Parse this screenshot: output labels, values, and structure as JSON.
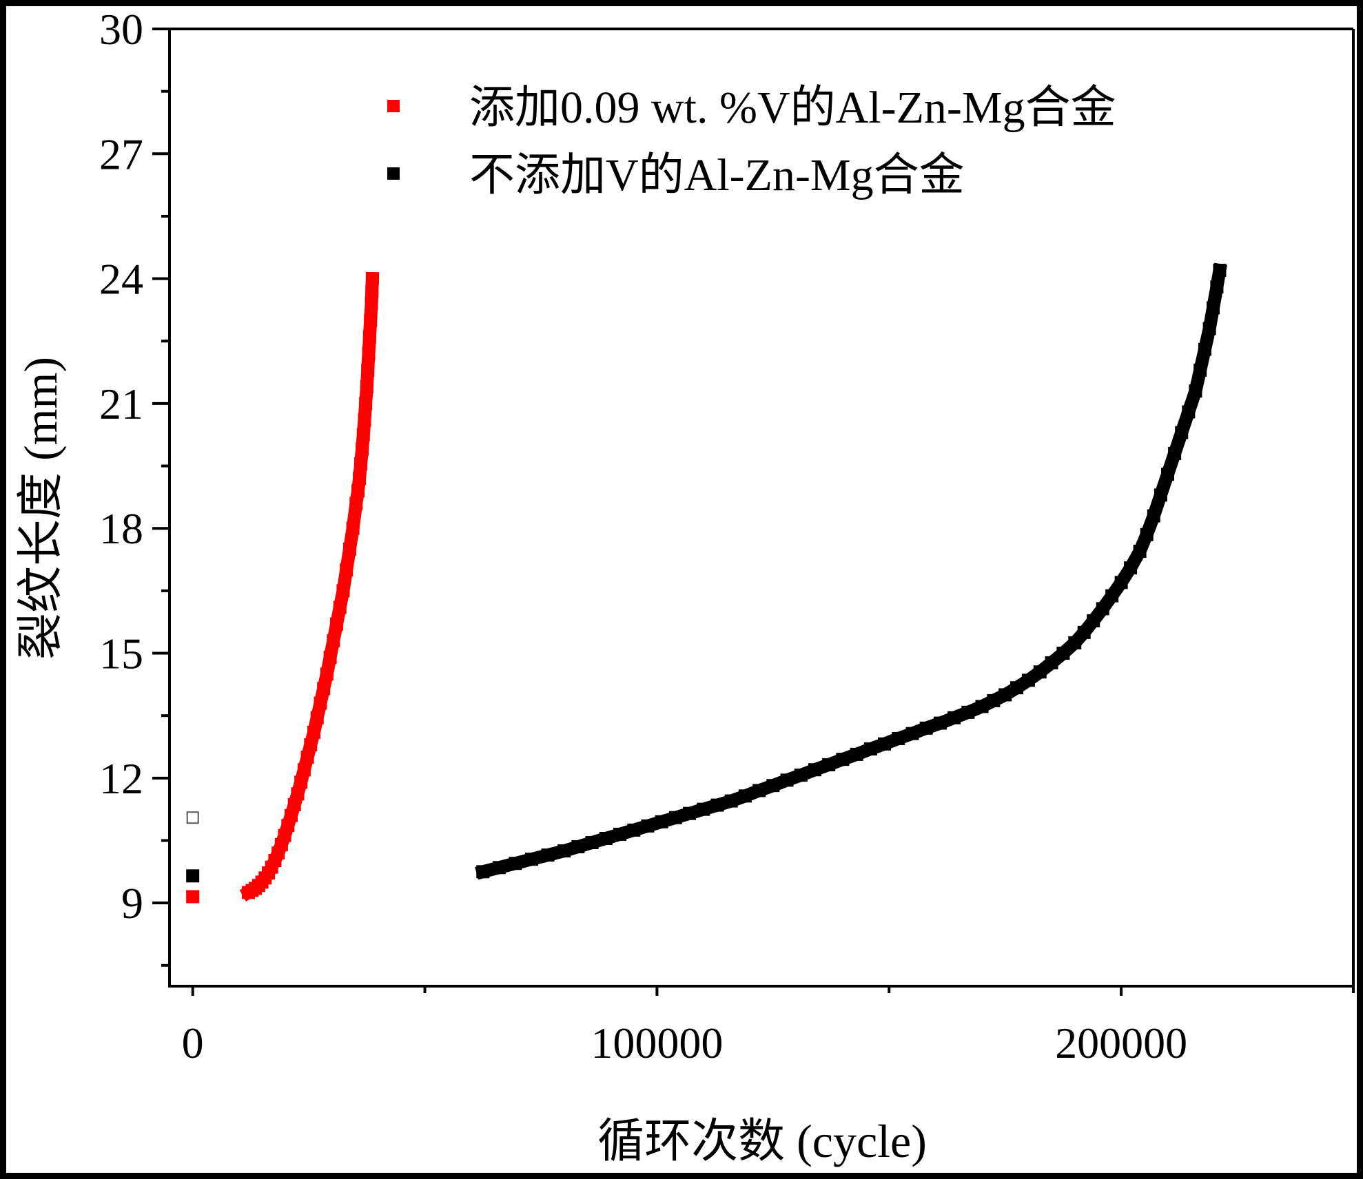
{
  "chart_data": {
    "type": "scatter",
    "title": "",
    "xlabel": "循环次数 (cycle)",
    "ylabel": "裂纹长度 (mm)",
    "xlim": [
      -5000,
      250000
    ],
    "ylim": [
      7,
      30
    ],
    "x_major_ticks": [
      0,
      100000,
      200000
    ],
    "x_tick_labels": [
      "0",
      "100000",
      "200000"
    ],
    "x_minor_ticks": [
      50000,
      150000,
      250000
    ],
    "y_major_ticks": [
      9,
      12,
      15,
      18,
      21,
      24,
      27,
      30
    ],
    "y_tick_labels": [
      "9",
      "12",
      "15",
      "18",
      "21",
      "24",
      "27",
      "30"
    ],
    "y_minor_ticks": [
      7.5,
      10.5,
      13.5,
      16.5,
      19.5,
      22.5,
      25.5,
      28.5
    ],
    "grid": false,
    "legend_position": "top-center",
    "series": [
      {
        "name": "添加0.09 wt. %V的Al-Zn-Mg合金",
        "color": "#ff0000",
        "marker": "filled-square",
        "points": [
          [
            0,
            9.15
          ],
          [
            12000,
            9.25
          ],
          [
            12800,
            9.3
          ],
          [
            13500,
            9.35
          ],
          [
            14200,
            9.42
          ],
          [
            14900,
            9.5
          ],
          [
            15600,
            9.6
          ],
          [
            16300,
            9.72
          ],
          [
            17000,
            9.86
          ],
          [
            17700,
            10.02
          ],
          [
            18400,
            10.2
          ],
          [
            19100,
            10.4
          ],
          [
            19800,
            10.62
          ],
          [
            20500,
            10.86
          ],
          [
            21200,
            11.1
          ],
          [
            21900,
            11.36
          ],
          [
            22600,
            11.62
          ],
          [
            23300,
            11.9
          ],
          [
            24000,
            12.2
          ],
          [
            24700,
            12.5
          ],
          [
            25400,
            12.8
          ],
          [
            26100,
            13.1
          ],
          [
            26800,
            13.45
          ],
          [
            27500,
            13.8
          ],
          [
            28200,
            14.15
          ],
          [
            28900,
            14.5
          ],
          [
            29600,
            14.9
          ],
          [
            30300,
            15.3
          ],
          [
            31000,
            15.7
          ],
          [
            31700,
            16.1
          ],
          [
            32400,
            16.5
          ],
          [
            33100,
            17.0
          ],
          [
            33800,
            17.5
          ],
          [
            34500,
            18.0
          ],
          [
            35200,
            18.6
          ],
          [
            35600,
            18.9
          ],
          [
            35900,
            19.2
          ],
          [
            36200,
            19.55
          ],
          [
            36500,
            19.9
          ],
          [
            36750,
            20.25
          ],
          [
            37000,
            20.6
          ],
          [
            37250,
            21.0
          ],
          [
            37500,
            21.4
          ],
          [
            37700,
            21.8
          ],
          [
            37900,
            22.2
          ],
          [
            38100,
            22.6
          ],
          [
            38300,
            23.0
          ],
          [
            38500,
            23.4
          ],
          [
            38600,
            23.7
          ],
          [
            38700,
            24.0
          ]
        ]
      },
      {
        "name": "不添加V的Al-Zn-Mg合金",
        "color": "#000000",
        "marker": "filled-square",
        "points": [
          [
            0,
            9.65
          ],
          [
            62500,
            9.75
          ],
          [
            66000,
            9.85
          ],
          [
            69500,
            9.95
          ],
          [
            73000,
            10.05
          ],
          [
            76500,
            10.15
          ],
          [
            80000,
            10.25
          ],
          [
            83000,
            10.35
          ],
          [
            86000,
            10.45
          ],
          [
            89000,
            10.55
          ],
          [
            92000,
            10.65
          ],
          [
            95000,
            10.75
          ],
          [
            98000,
            10.85
          ],
          [
            101000,
            10.95
          ],
          [
            104000,
            11.05
          ],
          [
            107000,
            11.15
          ],
          [
            110000,
            11.25
          ],
          [
            113000,
            11.35
          ],
          [
            116000,
            11.45
          ],
          [
            119000,
            11.57
          ],
          [
            122000,
            11.7
          ],
          [
            125000,
            11.82
          ],
          [
            128000,
            11.95
          ],
          [
            131000,
            12.07
          ],
          [
            134000,
            12.2
          ],
          [
            137000,
            12.32
          ],
          [
            140000,
            12.45
          ],
          [
            143000,
            12.57
          ],
          [
            146000,
            12.7
          ],
          [
            149000,
            12.82
          ],
          [
            152000,
            12.95
          ],
          [
            155000,
            13.07
          ],
          [
            158000,
            13.2
          ],
          [
            161000,
            13.32
          ],
          [
            164000,
            13.45
          ],
          [
            167000,
            13.58
          ],
          [
            170000,
            13.72
          ],
          [
            172500,
            13.86
          ],
          [
            175000,
            14.0
          ],
          [
            177500,
            14.17
          ],
          [
            180000,
            14.35
          ],
          [
            182500,
            14.55
          ],
          [
            185000,
            14.77
          ],
          [
            187500,
            15.0
          ],
          [
            190000,
            15.25
          ],
          [
            192000,
            15.5
          ],
          [
            194000,
            15.78
          ],
          [
            196000,
            16.07
          ],
          [
            198000,
            16.38
          ],
          [
            200000,
            16.7
          ],
          [
            202000,
            17.05
          ],
          [
            204000,
            17.45
          ],
          [
            205500,
            17.85
          ],
          [
            207000,
            18.3
          ],
          [
            208500,
            18.8
          ],
          [
            210000,
            19.3
          ],
          [
            211500,
            19.8
          ],
          [
            213000,
            20.3
          ],
          [
            214500,
            20.8
          ],
          [
            216000,
            21.3
          ],
          [
            217000,
            21.8
          ],
          [
            218000,
            22.3
          ],
          [
            219000,
            22.8
          ],
          [
            219800,
            23.3
          ],
          [
            220600,
            23.8
          ],
          [
            221200,
            24.2
          ]
        ]
      },
      {
        "name": "",
        "color": "#555555",
        "marker": "hollow-square",
        "points": [
          [
            0,
            11.05
          ]
        ]
      }
    ]
  }
}
